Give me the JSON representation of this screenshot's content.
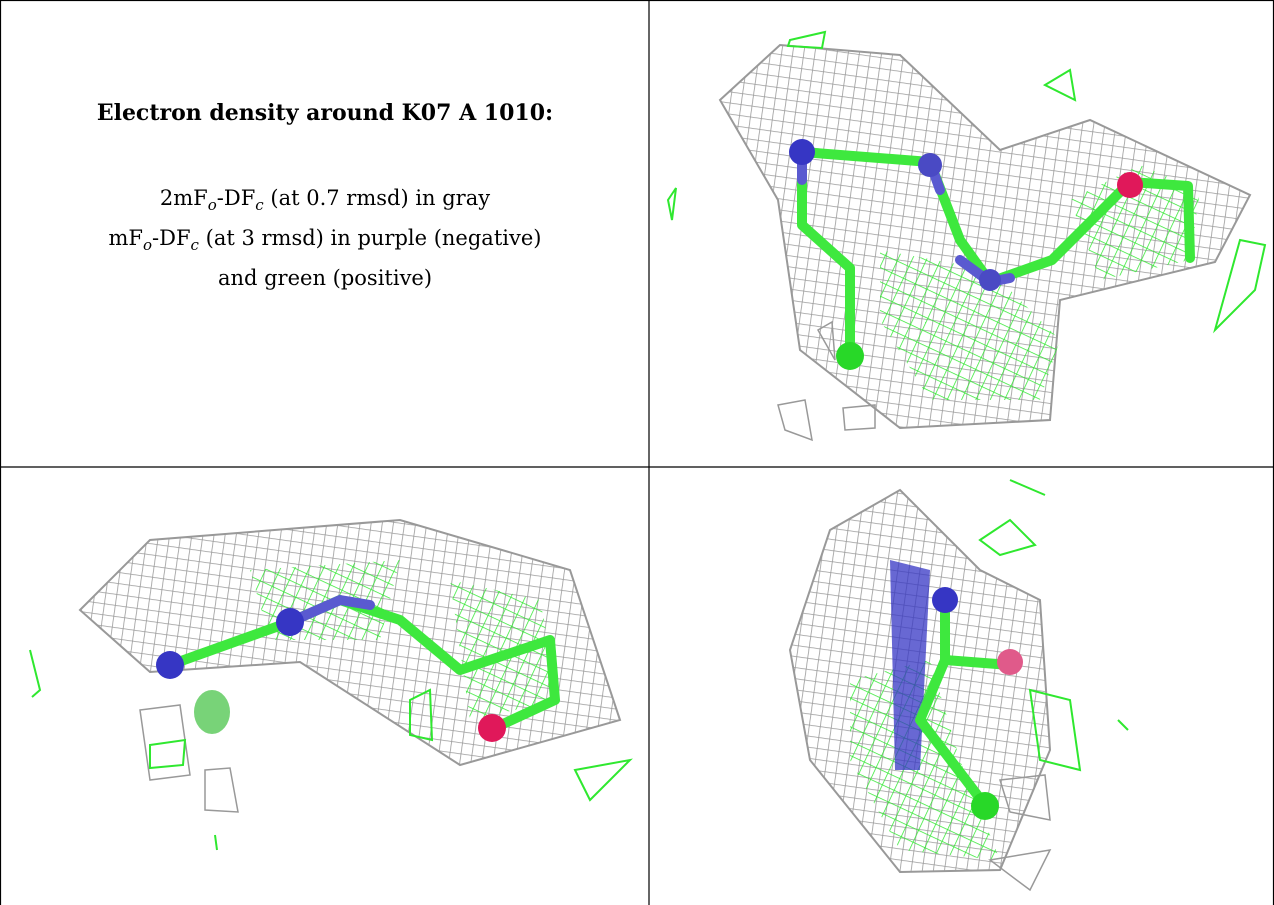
{
  "caption": {
    "title": "Electron density around K07 A 1010:",
    "lines": [
      [
        "2mF",
        "o",
        "-DF",
        "c",
        " (at 0.7 rmsd) in gray"
      ],
      [
        "mF",
        "o",
        "-DF",
        "c",
        " (at 3 rmsd) in purple (negative)"
      ],
      [
        "and green (positive)"
      ]
    ]
  }
}
